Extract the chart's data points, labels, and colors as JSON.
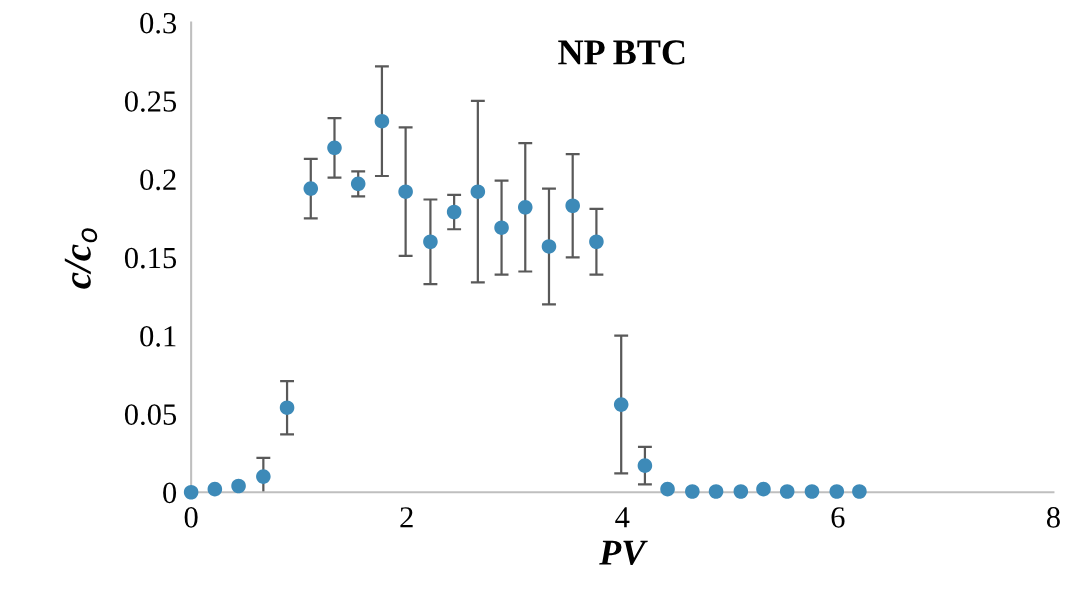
{
  "chart_data": {
    "type": "scatter",
    "title": "NP BTC",
    "xlabel": "PV",
    "ylabel": "c/c$_{o}$",
    "x": [
      0,
      0.22,
      0.44,
      0.67,
      0.89,
      1.11,
      1.33,
      1.55,
      1.77,
      1.99,
      2.22,
      2.44,
      2.66,
      2.88,
      3.1,
      3.32,
      3.54,
      3.76,
      3.99,
      4.21,
      4.42,
      4.65,
      4.87,
      5.1,
      5.31,
      5.53,
      5.76,
      5.99,
      6.2
    ],
    "values": [
      0,
      0.002,
      0.004,
      0.01,
      0.054,
      0.194,
      0.22,
      0.197,
      0.237,
      0.192,
      0.16,
      0.179,
      0.192,
      0.169,
      0.182,
      0.157,
      0.183,
      0.16,
      0.056,
      0.017,
      0.002,
      0.0005,
      0.0005,
      0.0005,
      0.002,
      0.0005,
      0.0005,
      0.0005,
      0.0005
    ],
    "errors": [
      null,
      null,
      null,
      0.012,
      0.017,
      0.019,
      0.019,
      0.008,
      0.035,
      0.041,
      0.027,
      0.011,
      0.058,
      0.03,
      0.041,
      0.037,
      0.033,
      0.021,
      0.044,
      0.012,
      null,
      null,
      null,
      null,
      null,
      null,
      null,
      null,
      null
    ],
    "color": "#3d8ab8",
    "marker": "circle",
    "xlim": [
      0,
      8
    ],
    "xticks": [
      0,
      2,
      4,
      6,
      8
    ],
    "ylim": [
      0,
      0.3
    ],
    "yticks": [
      0,
      0.05,
      0.1,
      0.15,
      0.2,
      0.25,
      0.3
    ],
    "grid": false,
    "legend": false
  }
}
